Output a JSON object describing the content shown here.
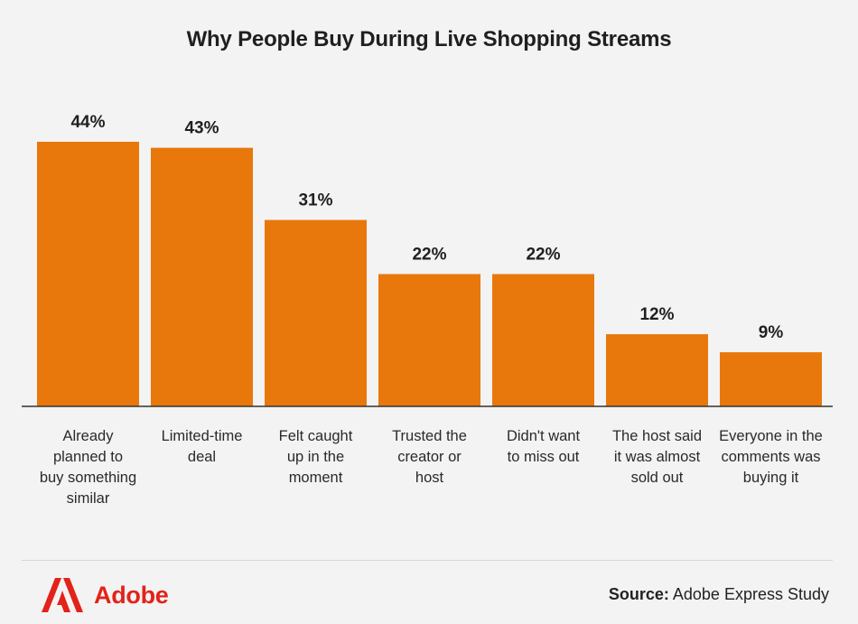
{
  "chart_data": {
    "type": "bar",
    "title": "Why People Buy During Live Shopping Streams",
    "categories": [
      [
        "Already",
        "planned to",
        "buy something",
        "similar"
      ],
      [
        "Limited-time",
        "deal"
      ],
      [
        "Felt caught",
        "up in the",
        "moment"
      ],
      [
        "Trusted the",
        "creator or",
        "host"
      ],
      [
        "Didn't want",
        "to miss out"
      ],
      [
        "The host said",
        "it was almost",
        "sold out"
      ],
      [
        "Everyone in the",
        "comments was",
        "buying it"
      ]
    ],
    "values": [
      44,
      43,
      31,
      22,
      22,
      12,
      9
    ],
    "value_labels": [
      "44%",
      "43%",
      "31%",
      "22%",
      "22%",
      "12%",
      "9%"
    ],
    "unit": "%",
    "ylim": [
      0,
      44
    ],
    "grid": false,
    "legend": "none",
    "colors": {
      "bar": "#e8780c",
      "axis": "#333333",
      "background": "#f3f3f3"
    }
  },
  "footer": {
    "brand": "Adobe",
    "brand_color": "#e2231a",
    "logo_icon": "adobe-logo-icon",
    "source_label": "Source:",
    "source_text": "Adobe Express Study"
  }
}
